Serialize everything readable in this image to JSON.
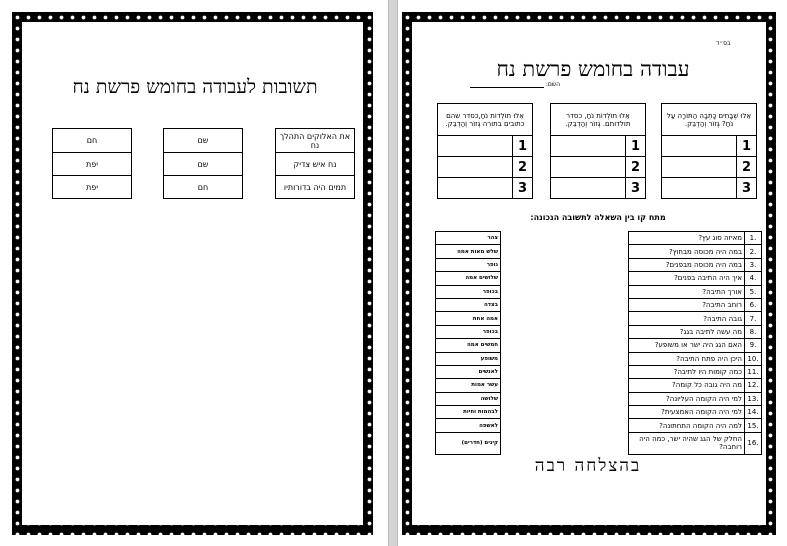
{
  "answers_page": {
    "title": "תשובות לעבודה בחומש פרשת נח",
    "tables": [
      [
        "את האלוקים התהלך נח",
        "נח איש צדיק",
        "תמים היה בדורותיו"
      ],
      [
        "שם",
        "שם",
        "חם"
      ],
      [
        "חם",
        "יפת",
        "יפת"
      ]
    ]
  },
  "worksheet": {
    "bsd": "בס״ד",
    "title": "עבודה בחומש פרשת נח",
    "name_label": "השם:",
    "header_tables": [
      {
        "header": "אֵלוּ שְׁבָחִים כָּתְבָה הַתּוֹרָה עַל נֹחַ? גְּזוֹר וְהַדְבֵּק.",
        "rows": [
          "1",
          "2",
          "3"
        ]
      },
      {
        "header": "אֵלוּ תוֹלְדוֹת נֹחַ, כסדר תולדותם. גְּזוֹר וְהַדְבֵּק.",
        "rows": [
          "1",
          "2",
          "3"
        ]
      },
      {
        "header": "אֵלוּ תוֹלְדוֹת נֹחַ,כסדר שהם כתובים בתורה גְּזוֹר וְהַדְבֵּק.",
        "rows": [
          "1",
          "2",
          "3"
        ]
      }
    ],
    "instruction": "מתח קו בין השאלה לתשובה הנכונה:",
    "questions": [
      {
        "n": ".1",
        "q": "מאיזה סוג עץ?"
      },
      {
        "n": ".2",
        "q": "במה היה מכוסה מבחוץ?"
      },
      {
        "n": ".3",
        "q": "במה היה מכוסה מבפנים?"
      },
      {
        "n": ".4",
        "q": "איך היה התיבה בפנים?"
      },
      {
        "n": ".5",
        "q": "אורך התיבה?"
      },
      {
        "n": ".6",
        "q": "רוחב התיבה?"
      },
      {
        "n": ".7",
        "q": "גובה התיבה?"
      },
      {
        "n": ".8",
        "q": "מה עשה לתיבה בגג?"
      },
      {
        "n": ".9",
        "q": "האם הגג היה ישר או משופע?"
      },
      {
        "n": ".10",
        "q": "היכן היה פתח התיבה?"
      },
      {
        "n": ".11",
        "q": "כמה קומות היו לתיבה?"
      },
      {
        "n": ".12",
        "q": "מה היה גובה כל קומה?"
      },
      {
        "n": ".13",
        "q": "למי היה הקומה העליונה?"
      },
      {
        "n": ".14",
        "q": "למי היה הקומה האמצעית?"
      },
      {
        "n": ".15",
        "q": "למה היה הקומה התחתונה?"
      },
      {
        "n": ".16",
        "q": "החלק של הגג שהיה ישר, כמה היה רוחבה?"
      }
    ],
    "answers": [
      "צהר",
      "שלש מאות אמה",
      "גופר",
      "שלושים אמה",
      "בכופר",
      "בצדה",
      "אמה אחת",
      "בכופר",
      "חמשים אמה",
      "משופע",
      "לאנשים",
      "עשר אמות",
      "שלושה",
      "לבהמות וחיות",
      "לאשפה",
      "קינים (חדרים)"
    ],
    "footer": "בהצלחה רבה"
  }
}
